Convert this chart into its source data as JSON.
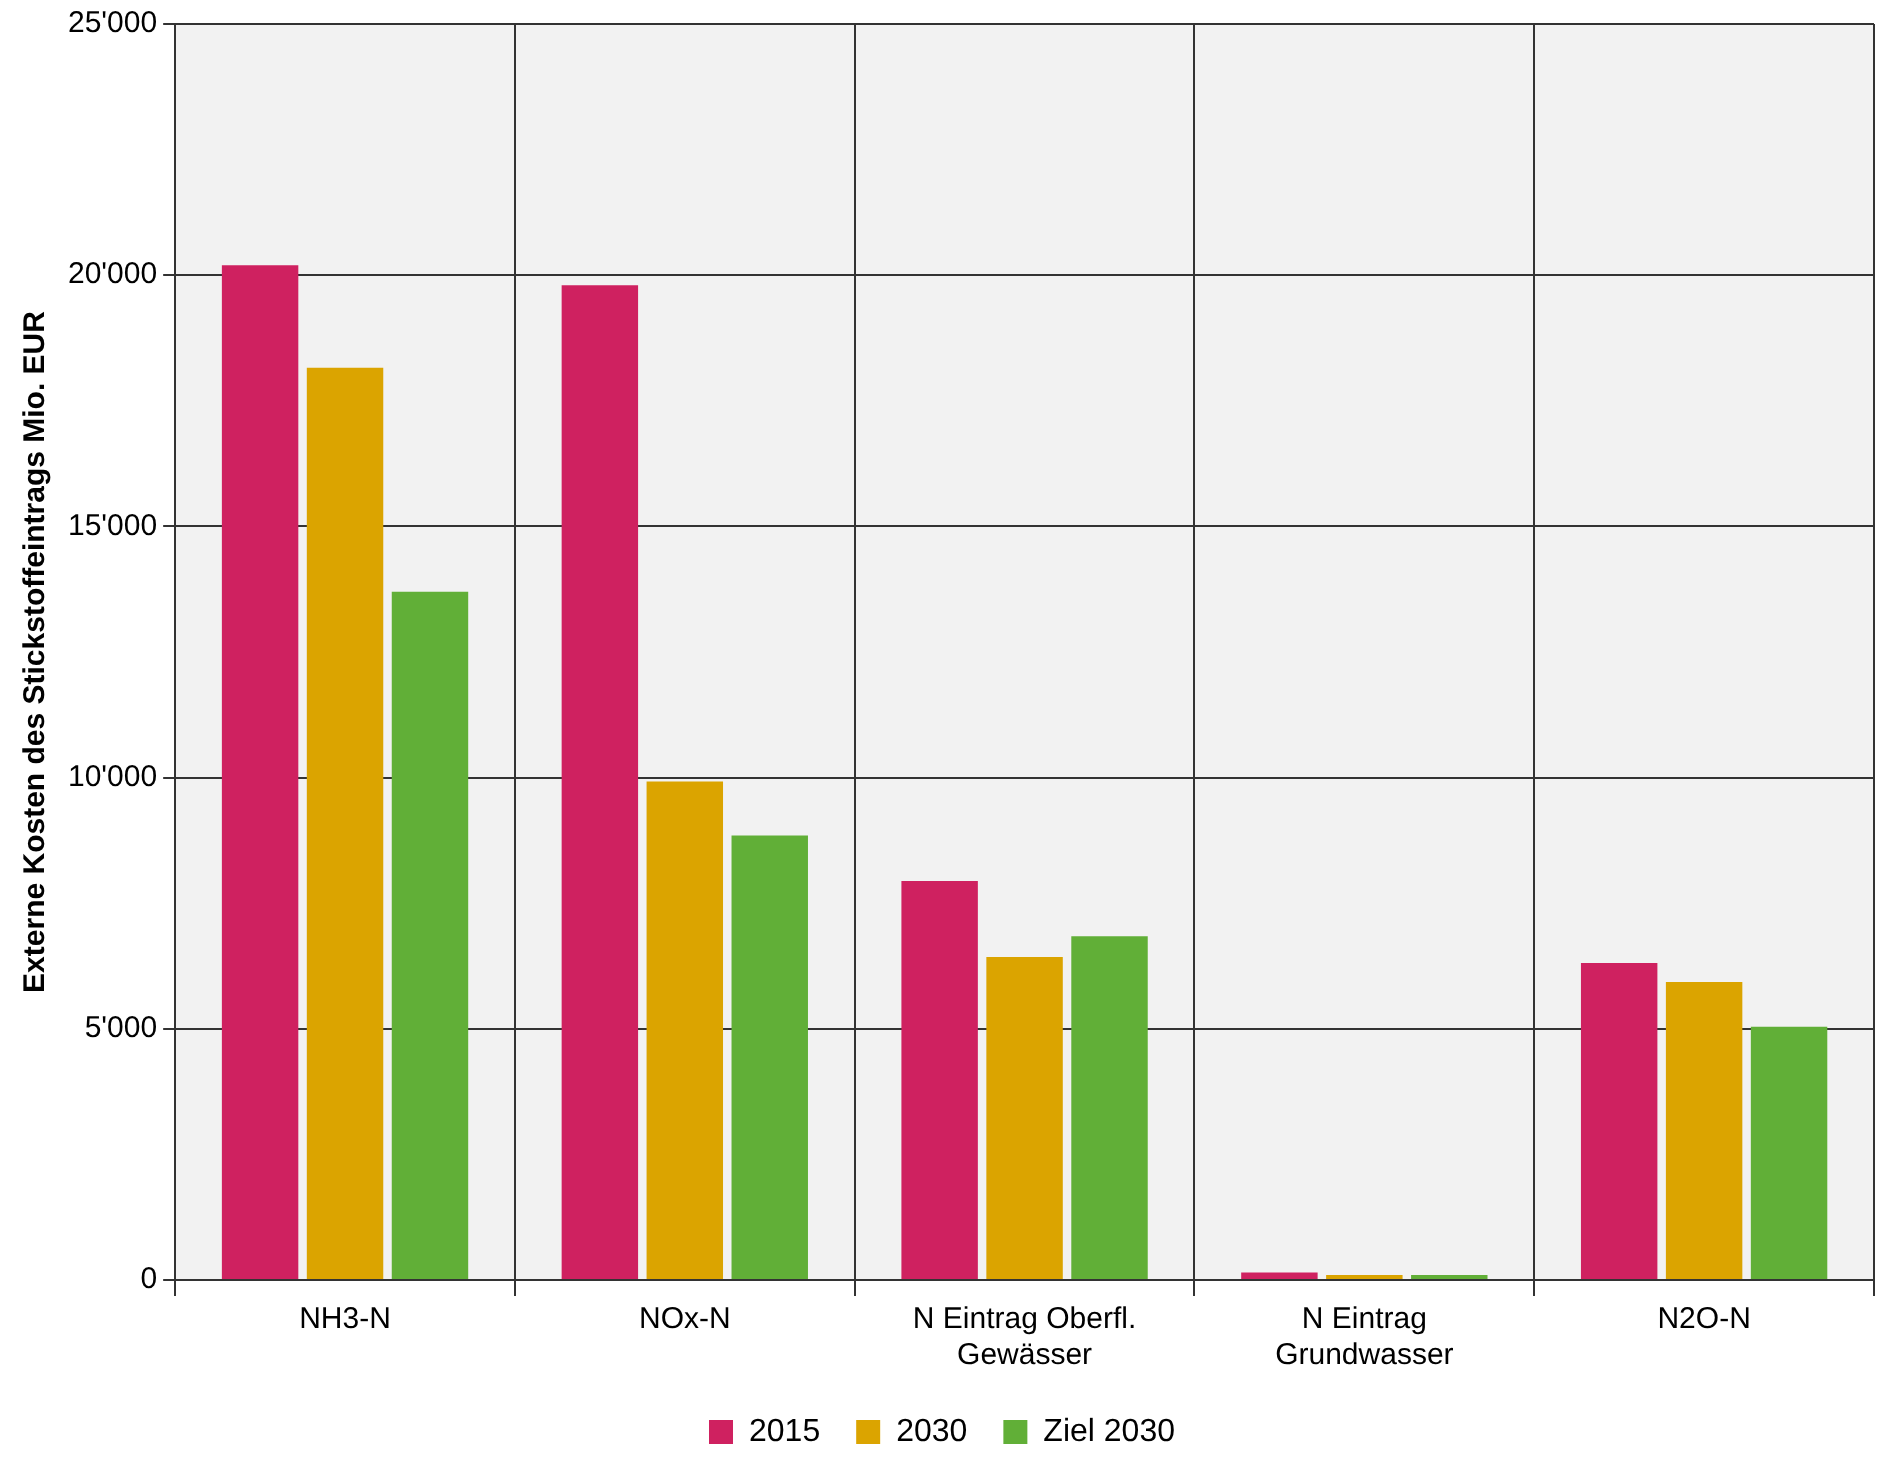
{
  "chart_data": {
    "type": "bar",
    "ylabel": "Externe Kosten des Stickstoffeintrags Mio. EUR",
    "categories": [
      "NH3-N",
      "NOx-N",
      "N Eintrag Oberfl.\nGewässer",
      "N Eintrag\nGrundwasser",
      "N2O-N"
    ],
    "series": [
      {
        "name": "2015",
        "color": "#cf2160",
        "values": [
          20200,
          19800,
          7940,
          150,
          6310
        ]
      },
      {
        "name": "2030",
        "color": "#dba400",
        "values": [
          18160,
          9920,
          6430,
          100,
          5930
        ]
      },
      {
        "name": "Ziel 2030",
        "color": "#61af37",
        "values": [
          13700,
          8850,
          6840,
          100,
          5040
        ]
      }
    ],
    "ylim": [
      0,
      25000
    ],
    "yticks": [
      {
        "value": 0,
        "label": "0"
      },
      {
        "value": 5000,
        "label": "5'000"
      },
      {
        "value": 10000,
        "label": "10'000"
      },
      {
        "value": 15000,
        "label": "15'000"
      },
      {
        "value": 20000,
        "label": "20'000"
      },
      {
        "value": 25000,
        "label": "25'000"
      }
    ],
    "grid": true,
    "legend": "bottom"
  }
}
